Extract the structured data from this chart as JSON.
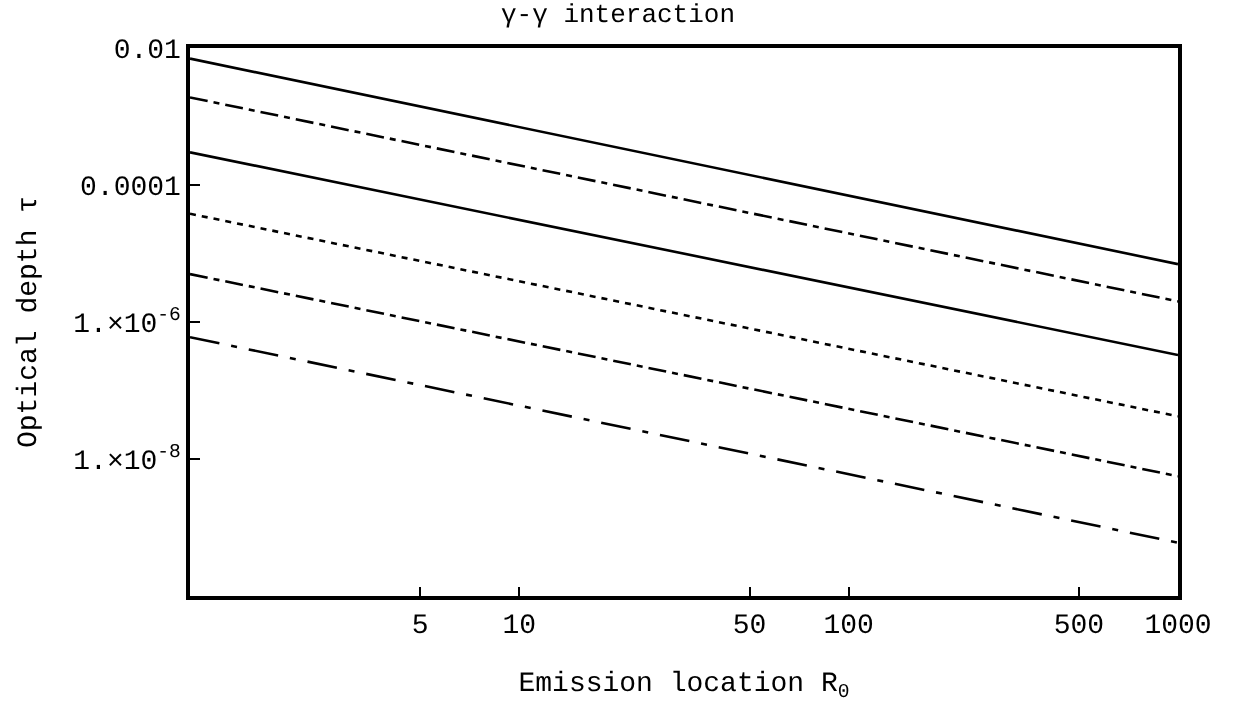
{
  "chart_data": {
    "type": "line",
    "title": "γ-γ interaction",
    "xlabel": "Emission location R$_{0}$",
    "ylabel": "Optical depth τ",
    "log": "xy",
    "marker": "none",
    "xlim": [
      1,
      1000
    ],
    "xticks": [
      5,
      10,
      50,
      100,
      500,
      1000
    ],
    "ylim": [
      1e-10,
      0.01
    ],
    "yticks": [
      {
        "value": 0.01,
        "label": "0.01"
      },
      {
        "value": 0.0001,
        "label": "0.0001"
      },
      {
        "value": 1e-06,
        "label": "1.×10$^{-6}$"
      },
      {
        "value": 1e-08,
        "label": "1.×10$^{-8}$"
      }
    ],
    "x": [
      1,
      1000
    ],
    "series": [
      {
        "color": "#000000",
        "values": [
          0.007,
          7e-06
        ],
        "line_style": "solid"
      },
      {
        "color": "#000000",
        "values": [
          0.0019,
          2e-06
        ],
        "line_style": "dashdot"
      },
      {
        "color": "#000000",
        "values": [
          0.0003,
          3.3e-07
        ],
        "line_style": "solid"
      },
      {
        "color": "#000000",
        "values": [
          3.8e-05,
          4.2e-08
        ],
        "line_style": "dotted"
      },
      {
        "color": "#000000",
        "values": [
          5e-06,
          5.6e-09
        ],
        "line_style": "dashdot"
      },
      {
        "color": "#000000",
        "values": [
          6e-07,
          6e-10
        ],
        "line_style": "longdashdot"
      }
    ]
  }
}
